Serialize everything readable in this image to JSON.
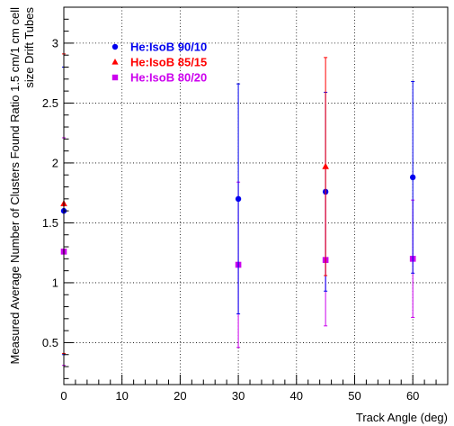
{
  "chart_data": {
    "type": "scatter",
    "xlabel": "Track Angle (deg)",
    "ylabel_lines": [
      "Measured Average Number of Clusters Found Ratio 1.5 cm/1 cm cell",
      "size Drift Tubes"
    ],
    "xlim": [
      0,
      66
    ],
    "ylim": [
      0.15,
      3.3
    ],
    "xticks": [
      0,
      10,
      20,
      30,
      40,
      50,
      60
    ],
    "yticks": [
      0.5,
      1,
      1.5,
      2,
      2.5,
      3
    ],
    "ytick_labels": [
      "0.5",
      "1",
      "1.5",
      "2",
      "2.5",
      "3"
    ],
    "grid": true,
    "legend_position": "top-left",
    "series": [
      {
        "name": "He:IsoB 90/10",
        "color": "#0000ee",
        "marker": "circle",
        "points": [
          {
            "x": 0,
            "y": 1.6,
            "err": 1.2
          },
          {
            "x": 30,
            "y": 1.7,
            "err": 0.96
          },
          {
            "x": 45,
            "y": 1.76,
            "err": 0.83
          },
          {
            "x": 60,
            "y": 1.88,
            "err": 0.8
          }
        ]
      },
      {
        "name": "He:IsoB 85/15",
        "color": "#ff0000",
        "marker": "triangle",
        "points": [
          {
            "x": 0,
            "y": 1.66,
            "err": 1.25
          },
          {
            "x": 45,
            "y": 1.97,
            "err": 0.91
          }
        ]
      },
      {
        "name": "He:IsoB 80/20",
        "color": "#cc00ee",
        "marker": "square",
        "points": [
          {
            "x": 0,
            "y": 1.26,
            "err": 0.95
          },
          {
            "x": 30,
            "y": 1.15,
            "err": 0.69
          },
          {
            "x": 45,
            "y": 1.19,
            "err": 0.55
          },
          {
            "x": 60,
            "y": 1.2,
            "err": 0.49
          }
        ]
      }
    ]
  }
}
